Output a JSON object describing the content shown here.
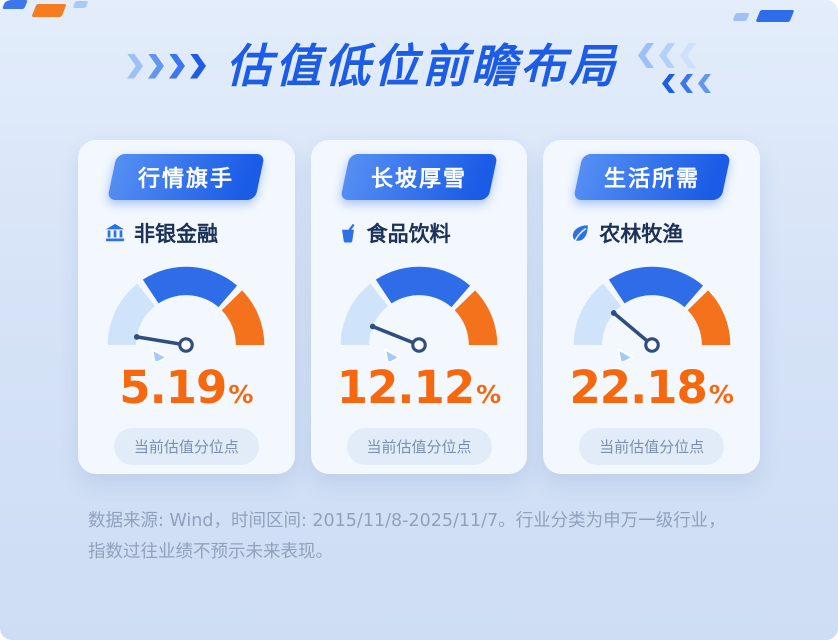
{
  "title": "估值低位前瞻布局",
  "cards": [
    {
      "badge": "行情旗手",
      "industry": "非银金融",
      "icon": "bank-icon",
      "value": "5.19",
      "unit": "%",
      "caption": "当前估值分位点"
    },
    {
      "badge": "长坡厚雪",
      "industry": "食品饮料",
      "icon": "drink-icon",
      "value": "12.12",
      "unit": "%",
      "caption": "当前估值分位点"
    },
    {
      "badge": "生活所需",
      "industry": "农林牧渔",
      "icon": "leaf-icon",
      "value": "22.18",
      "unit": "%",
      "caption": "当前估值分位点"
    }
  ],
  "footnote": "数据来源: Wind，时间区间: 2015/11/8-2025/11/7。行业分类为申万一级行业，指数过往业绩不预示未来表现。",
  "colors": {
    "accent_blue": "#1d5ce6",
    "accent_orange": "#f5680f",
    "background": "#d6e3f7",
    "card": "#f3f8fe",
    "gauge_light": "#cfe3fa",
    "gauge_blue": "#2e6ce8",
    "gauge_orange": "#f5721d"
  },
  "chart_data": [
    {
      "type": "gauge",
      "title": "非银金融",
      "value": 5.19,
      "min": 0,
      "max": 100,
      "unit": "%",
      "label": "当前估值分位点",
      "segments": [
        {
          "from": 0,
          "to": 30,
          "color": "#cfe3fa"
        },
        {
          "from": 30,
          "to": 74,
          "color": "#2e6ce8"
        },
        {
          "from": 74,
          "to": 100,
          "color": "#f5721d"
        }
      ]
    },
    {
      "type": "gauge",
      "title": "食品饮料",
      "value": 12.12,
      "min": 0,
      "max": 100,
      "unit": "%",
      "label": "当前估值分位点",
      "segments": [
        {
          "from": 0,
          "to": 30,
          "color": "#cfe3fa"
        },
        {
          "from": 30,
          "to": 74,
          "color": "#2e6ce8"
        },
        {
          "from": 74,
          "to": 100,
          "color": "#f5721d"
        }
      ]
    },
    {
      "type": "gauge",
      "title": "农林牧渔",
      "value": 22.18,
      "min": 0,
      "max": 100,
      "unit": "%",
      "label": "当前估值分位点",
      "segments": [
        {
          "from": 0,
          "to": 30,
          "color": "#cfe3fa"
        },
        {
          "from": 30,
          "to": 74,
          "color": "#2e6ce8"
        },
        {
          "from": 74,
          "to": 100,
          "color": "#f5721d"
        }
      ]
    }
  ]
}
